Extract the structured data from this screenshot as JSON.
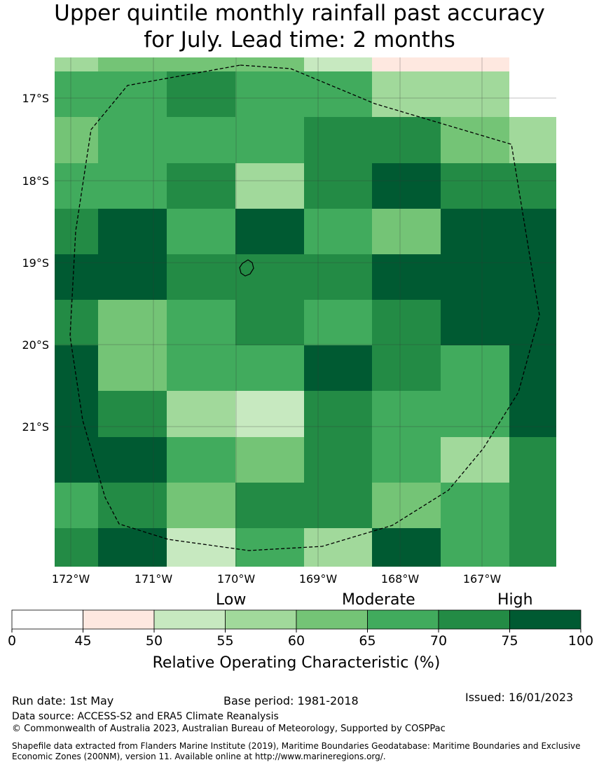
{
  "title": {
    "line1": "Upper quintile monthly rainfall past accuracy",
    "line2": "for July. Lead time: 2 months"
  },
  "map": {
    "lat_ticks": [
      "17°S",
      "18°S",
      "19°S",
      "20°S",
      "21°S"
    ],
    "lon_ticks": [
      "172°W",
      "171°W",
      "170°W",
      "169°W",
      "168°W",
      "167°W"
    ],
    "grid_rows": [
      [
        4,
        5,
        5,
        5,
        3,
        1,
        1,
        0
      ],
      [
        6,
        6,
        7,
        6,
        6,
        4,
        4,
        0
      ],
      [
        5,
        6,
        6,
        6,
        7,
        7,
        5,
        4
      ],
      [
        6,
        6,
        7,
        4,
        7,
        8,
        7,
        7
      ],
      [
        7,
        8,
        6,
        8,
        6,
        5,
        8,
        8
      ],
      [
        8,
        8,
        7,
        7,
        7,
        8,
        8,
        8
      ],
      [
        7,
        5,
        6,
        7,
        6,
        7,
        8,
        8
      ],
      [
        8,
        5,
        6,
        6,
        8,
        7,
        6,
        8
      ],
      [
        8,
        7,
        4,
        3,
        7,
        6,
        6,
        8
      ],
      [
        8,
        8,
        6,
        5,
        7,
        6,
        4,
        7
      ],
      [
        6,
        7,
        5,
        7,
        7,
        5,
        6,
        7
      ],
      [
        7,
        8,
        3,
        6,
        4,
        8,
        6,
        7
      ]
    ],
    "island": "island-outline",
    "boundary": "eez-boundary-dashed"
  },
  "colorbar": {
    "category_labels": [
      "Low",
      "Moderate",
      "High"
    ],
    "ticks": [
      "0",
      "45",
      "50",
      "55",
      "60",
      "65",
      "70",
      "75",
      "100"
    ],
    "colors": [
      "#ffffff",
      "#fee8e0",
      "#c7e9c0",
      "#a1d99b",
      "#74c476",
      "#41ab5d",
      "#238b45",
      "#005a32"
    ],
    "title": "Relative Operating Characteristic (%)"
  },
  "colors": {
    "grid_palette": [
      "#ffffff",
      "#fee8e0",
      "#c7e9c0",
      "#c7e9c0",
      "#a1d99b",
      "#74c476",
      "#41ab5d",
      "#238b45",
      "#005a32"
    ]
  },
  "footer": {
    "run_date": "Run date: 1st May",
    "base_period": "Base period: 1981-2018",
    "issued": "Issued: 16/01/2023",
    "data_source": "Data source: ACCESS-S2 and ERA5 Climate Reanalysis",
    "copyright": "© Commonwealth of Australia 2023, Australian Bureau of Meteorology, Supported by COSPPac",
    "shapefile": "Shapefile data extracted from Flanders Marine Institute (2019), Maritime Boundaries Geodatabase: Maritime Boundaries and Exclusive Economic Zones (200NM), version 11. Available online at http://www.marineregions.org/."
  }
}
